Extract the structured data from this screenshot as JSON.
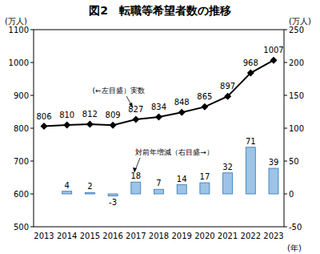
{
  "chart_data": {
    "type": "bar",
    "title": "図2　転職等希望者数の推移",
    "categories": [
      "2013",
      "2014",
      "2015",
      "2016",
      "2017",
      "2018",
      "2019",
      "2020",
      "2021",
      "2022",
      "2023"
    ],
    "x_label": "(年)",
    "y_label": "(万人)",
    "y2_label": "(万人)",
    "ylim": [
      500,
      1100
    ],
    "yticks": [
      500,
      600,
      700,
      800,
      900,
      1000,
      1100
    ],
    "y2lim": [
      -50,
      250
    ],
    "y2ticks": [
      -50,
      0,
      50,
      100,
      150,
      200,
      250
    ],
    "data_labels": true,
    "tick_labels": true,
    "series": [
      {
        "name": "(←左目盛）実数",
        "type": "line",
        "color": "#000000",
        "marker": "diamond",
        "values": [
          806,
          810,
          812,
          809,
          827,
          834,
          848,
          865,
          897,
          968,
          1007
        ]
      },
      {
        "name": "対前年増減（右目盛→）",
        "type": "bar",
        "axis": "y2",
        "color": "#9dc3e6",
        "values": [
          null,
          4,
          2,
          -3,
          18,
          7,
          14,
          17,
          32,
          71,
          39
        ]
      }
    ]
  }
}
